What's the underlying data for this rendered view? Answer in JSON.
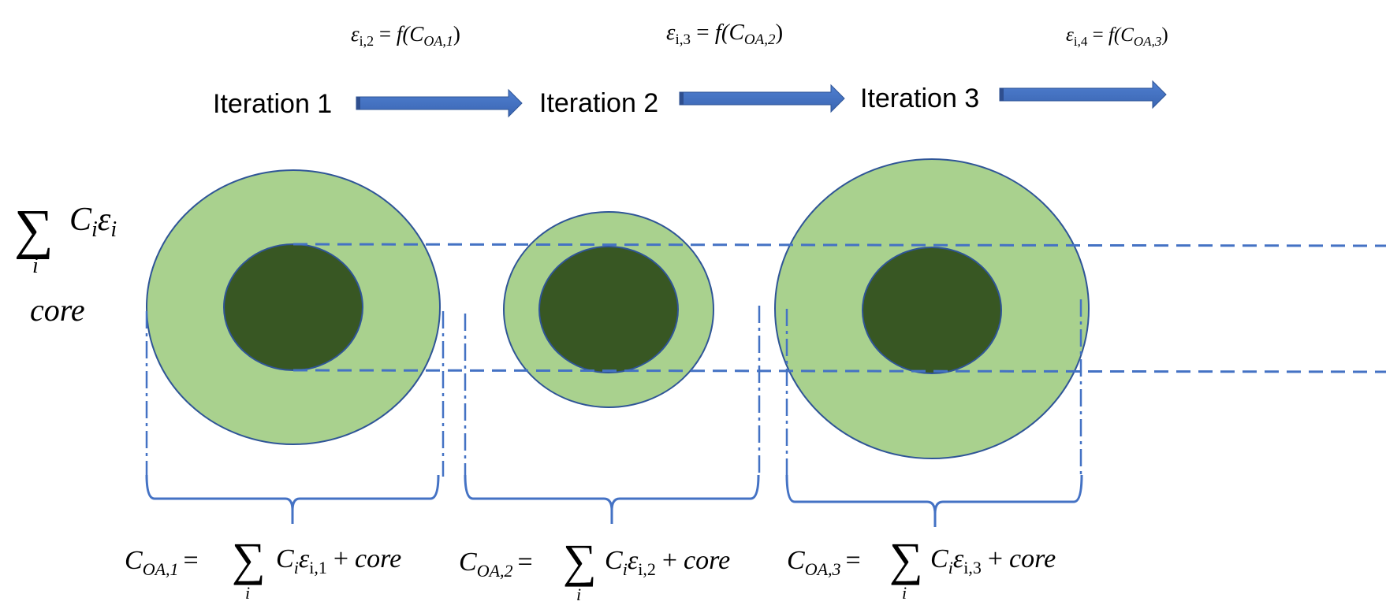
{
  "iterations": [
    {
      "label": "Iteration 1",
      "epsilon": "ε",
      "eps_sub": "i,2",
      "func": "f(C",
      "func_sub": "OA,1",
      "close": ")"
    },
    {
      "label": "Iteration 2",
      "epsilon": "ε",
      "eps_sub": "i,3",
      "func": "f(C",
      "func_sub": "OA,2",
      "close": ")"
    },
    {
      "label": "Iteration 3",
      "epsilon": "ε",
      "eps_sub": "i,4",
      "func": "f(C",
      "func_sub": "OA,3",
      "close": ")"
    }
  ],
  "legend": {
    "sum_symbol": "∑",
    "sum_index": "i",
    "sum_term": "C",
    "sum_term_sub": "i",
    "sum_eps": "ε",
    "sum_eps_sub": "i",
    "core_label": "core"
  },
  "formulas": [
    {
      "lhs": "C",
      "lhs_sub": "OA,1",
      "eq": "=",
      "sum": "∑",
      "idx": "i",
      "term": "C",
      "term_sub": "i",
      "eps": "ε",
      "eps_sub": "i,1",
      "plus": "+",
      "core": "core"
    },
    {
      "lhs": "C",
      "lhs_sub": "OA,2",
      "eq": "=",
      "sum": "∑",
      "idx": "i",
      "term": "C",
      "term_sub": "i",
      "eps": "ε",
      "eps_sub": "i,2",
      "plus": "+",
      "core": "core"
    },
    {
      "lhs": "C",
      "lhs_sub": "OA,3",
      "eq": "=",
      "sum": "∑",
      "idx": "i",
      "term": "C",
      "term_sub": "i",
      "eps": "ε",
      "eps_sub": "i,3",
      "plus": "+",
      "core": "core"
    }
  ],
  "colors": {
    "outer_fill": "#a9d18e",
    "inner_fill": "#385723",
    "stroke": "#2f5597",
    "arrow": "#4472c4",
    "dash": "#4472c4"
  }
}
